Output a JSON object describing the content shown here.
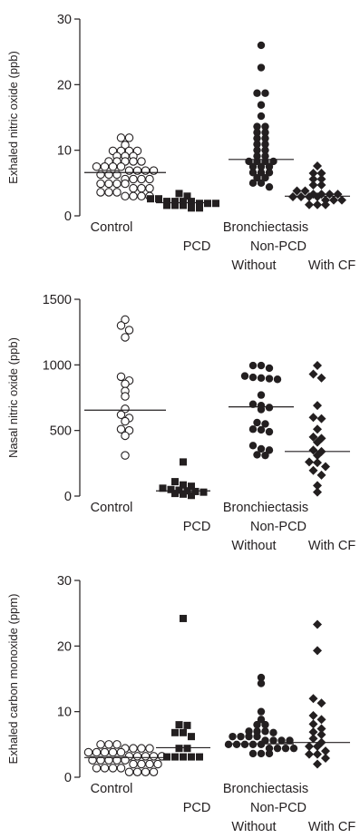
{
  "chart_data": [
    {
      "type": "scatter",
      "ylabel": "Exhaled nitric oxide (ppb)",
      "ylim": [
        0,
        30
      ],
      "yticks": [
        0,
        10,
        20,
        30
      ],
      "categories": [
        "Control",
        "PCD",
        "Non-PCD Without",
        "Non-PCD With CF"
      ],
      "category_labels": {
        "control": "Control",
        "pcd": "PCD",
        "bronchiectasis": "Bronchiectasis",
        "nonpcd": "Non-PCD",
        "without": "Without",
        "withcf": "With CF"
      },
      "series": [
        {
          "name": "Control",
          "marker": "circle-open",
          "median": 6.6,
          "values": [
            11.9,
            11.9,
            10.8,
            9.9,
            9.9,
            9.9,
            9.9,
            9.1,
            9.1,
            9.1,
            8.3,
            8.3,
            8.3,
            8.3,
            8.3,
            7.5,
            7.5,
            7.5,
            7.5,
            6.9,
            6.9,
            6.9,
            6.9,
            6.3,
            6.3,
            6.3,
            5.6,
            5.6,
            5.6,
            5.6,
            4.9,
            4.9,
            4.9,
            4.9,
            4.2,
            4.2,
            4.2,
            3.6,
            3.6,
            3.6,
            3.0,
            3.0,
            3.0,
            3.0
          ]
        },
        {
          "name": "PCD",
          "marker": "square-filled",
          "median": 2.0,
          "values": [
            3.4,
            3.0,
            2.6,
            2.6,
            2.2,
            2.2,
            2.2,
            2.2,
            1.9,
            1.9,
            1.9,
            1.6,
            1.6,
            1.6,
            1.2,
            1.2
          ]
        },
        {
          "name": "Non-PCD Without",
          "marker": "circle-filled",
          "median": 8.6,
          "values": [
            26.0,
            22.6,
            18.7,
            18.7,
            16.9,
            15.2,
            13.6,
            13.6,
            12.7,
            12.7,
            11.8,
            11.8,
            10.9,
            10.9,
            10.0,
            10.0,
            9.1,
            9.1,
            8.3,
            8.3,
            8.3,
            8.3,
            7.5,
            7.5,
            7.5,
            6.6,
            6.6,
            6.6,
            5.8,
            5.8,
            5.0,
            5.0,
            4.4
          ]
        },
        {
          "name": "Non-PCD With CF",
          "marker": "diamond-filled",
          "median": 3.0,
          "values": [
            7.6,
            6.5,
            6.5,
            5.6,
            5.6,
            4.7,
            4.7,
            3.8,
            3.8,
            3.3,
            3.3,
            3.3,
            3.3,
            2.9,
            2.9,
            2.9,
            2.9,
            2.4,
            2.4,
            2.4,
            1.7,
            1.7,
            1.7
          ]
        }
      ]
    },
    {
      "type": "scatter",
      "ylabel": "Nasal nitric oxide (ppb)",
      "ylim": [
        0,
        1500
      ],
      "yticks": [
        0,
        500,
        1000,
        1500
      ],
      "categories": [
        "Control",
        "PCD",
        "Non-PCD Without",
        "Non-PCD With CF"
      ],
      "category_labels": {
        "control": "Control",
        "pcd": "PCD",
        "bronchiectasis": "Bronchiectasis",
        "nonpcd": "Non-PCD",
        "without": "Without",
        "withcf": "With CF"
      },
      "series": [
        {
          "name": "Control",
          "marker": "circle-open",
          "median": 655,
          "values": [
            1345,
            1300,
            1265,
            1210,
            910,
            880,
            855,
            800,
            760,
            665,
            620,
            595,
            570,
            510,
            500,
            460,
            310
          ]
        },
        {
          "name": "PCD",
          "marker": "square-filled",
          "median": 40,
          "values": [
            260,
            110,
            85,
            75,
            60,
            50,
            45,
            40,
            35,
            30,
            20,
            15,
            5
          ]
        },
        {
          "name": "Non-PCD Without",
          "marker": "circle-filled",
          "median": 680,
          "values": [
            995,
            995,
            975,
            915,
            905,
            900,
            895,
            890,
            770,
            700,
            690,
            675,
            660,
            560,
            550,
            510,
            505,
            490,
            385,
            360,
            350,
            315,
            310
          ]
        },
        {
          "name": "Non-PCD With CF",
          "marker": "diamond-filled",
          "median": 340,
          "values": [
            995,
            930,
            900,
            690,
            600,
            590,
            510,
            450,
            440,
            410,
            350,
            340,
            310,
            260,
            255,
            225,
            195,
            160,
            80,
            30
          ]
        }
      ]
    },
    {
      "type": "scatter",
      "ylabel": "Exhaled carbon monoxide (ppm)",
      "ylim": [
        0,
        30
      ],
      "yticks": [
        0,
        10,
        20,
        30
      ],
      "categories": [
        "Control",
        "PCD",
        "Non-PCD Without",
        "Non-PCD With CF"
      ],
      "category_labels": {
        "control": "Control",
        "pcd": "PCD",
        "bronchiectasis": "Bronchiectasis",
        "nonpcd": "Non-PCD",
        "without": "Without",
        "withcf": "With CF"
      },
      "series": [
        {
          "name": "Control",
          "marker": "circle-open",
          "median": 3.0,
          "values": [
            5.0,
            5.0,
            5.0,
            4.4,
            4.4,
            4.4,
            4.4,
            3.8,
            3.8,
            3.8,
            3.8,
            3.8,
            3.2,
            3.2,
            3.2,
            3.2,
            3.2,
            2.6,
            2.6,
            2.6,
            2.6,
            2.6,
            2.0,
            2.0,
            2.0,
            2.0,
            1.4,
            1.4,
            1.4,
            1.4,
            0.8,
            0.8,
            0.8,
            0.8
          ]
        },
        {
          "name": "PCD",
          "marker": "square-filled",
          "median": 4.5,
          "values": [
            24.2,
            8.0,
            7.9,
            6.8,
            6.8,
            6.2,
            4.4,
            4.4,
            3.1,
            3.1,
            3.1,
            3.1,
            3.1
          ]
        },
        {
          "name": "Non-PCD Without",
          "marker": "circle-filled",
          "median": 5.1,
          "values": [
            15.2,
            14.3,
            10.0,
            8.8,
            8.0,
            8.0,
            7.0,
            7.0,
            7.0,
            6.8,
            6.2,
            6.2,
            6.2,
            6.2,
            5.6,
            5.6,
            5.6,
            5.6,
            5.0,
            5.0,
            5.0,
            5.0,
            5.0,
            4.4,
            4.4,
            4.4,
            4.4,
            3.6,
            3.6,
            3.6
          ]
        },
        {
          "name": "Non-PCD With CF",
          "marker": "diamond-filled",
          "median": 5.3,
          "values": [
            23.3,
            19.3,
            12.0,
            11.3,
            9.4,
            8.8,
            8.1,
            7.4,
            6.9,
            6.5,
            5.9,
            5.3,
            4.7,
            4.7,
            4.0,
            3.5,
            3.5,
            2.9,
            2.0
          ]
        }
      ]
    }
  ]
}
